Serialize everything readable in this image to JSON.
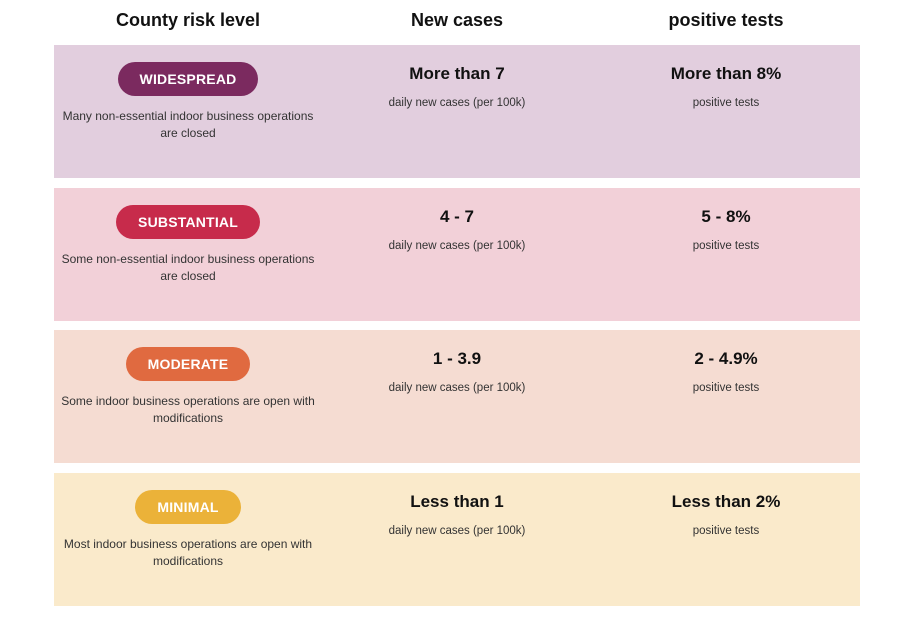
{
  "headers": {
    "risk": "County risk level",
    "cases": "New cases",
    "tests": "positive tests"
  },
  "rows": [
    {
      "badge": "WIDESPREAD",
      "description": "Many non-essential indoor business operations are closed",
      "cases_value": "More than 7",
      "cases_label": "daily new cases (per 100k)",
      "tests_value": "More than 8%",
      "tests_label": "positive tests",
      "badge_color": "#7b2a5f",
      "row_color": "#e2cede"
    },
    {
      "badge": "SUBSTANTIAL",
      "description": "Some non-essential indoor business operations are closed",
      "cases_value": "4 - 7",
      "cases_label": "daily new cases (per 100k)",
      "tests_value": "5 - 8%",
      "tests_label": "positive tests",
      "badge_color": "#c72b4b",
      "row_color": "#f2d0d8"
    },
    {
      "badge": "MODERATE",
      "description": "Some indoor business operations are open with modifications",
      "cases_value": "1 - 3.9",
      "cases_label": "daily new cases (per 100k)",
      "tests_value": "2 - 4.9%",
      "tests_label": "positive tests",
      "badge_color": "#e06a40",
      "row_color": "#f5dcd2"
    },
    {
      "badge": "MINIMAL",
      "description": "Most indoor business operations are open with modifications",
      "cases_value": "Less than 1",
      "cases_label": "daily new cases (per 100k)",
      "tests_value": "Less than 2%",
      "tests_label": "positive tests",
      "badge_color": "#ebb239",
      "row_color": "#faeacb"
    }
  ]
}
